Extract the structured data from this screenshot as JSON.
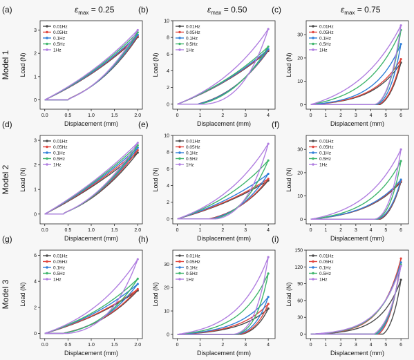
{
  "figure": {
    "column_titles": [
      {
        "symbol": "ε",
        "subscript": "max",
        "value": " = 0.25"
      },
      {
        "symbol": "ε",
        "subscript": "max",
        "value": " = 0.50"
      },
      {
        "symbol": "ε",
        "subscript": "max",
        "value": " = 0.75"
      }
    ],
    "row_labels": [
      "Model 1",
      "Model 2",
      "Model 3"
    ]
  },
  "colors": {
    "0.01Hz": "#4a4a4a",
    "0.05Hz": "#e0453d",
    "0.1Hz": "#2f7ed8",
    "0.5Hz": "#3fb56c",
    "1Hz": "#b07ee0"
  },
  "chart_data": [
    {
      "panel": "(a)",
      "type": "line",
      "xlabel": "Displacement (mm)",
      "ylabel": "Load (N)",
      "xlim": [
        -0.1,
        2.1
      ],
      "ylim": [
        -0.4,
        3.4
      ],
      "xticks": [
        "0.0",
        "0.5",
        "1.0",
        "1.5",
        "2.0"
      ],
      "xtick_values": [
        0,
        0.5,
        1,
        1.5,
        2
      ],
      "yticks": [
        "0",
        "1",
        "2",
        "3"
      ],
      "ytick_values": [
        0,
        1,
        2,
        3
      ],
      "x_max": 2,
      "legend": "top-left",
      "series": [
        {
          "name": "0.01Hz",
          "peak": 2.7,
          "unload_end": 0.5,
          "curv": 0.7,
          "hyst": 0.1
        },
        {
          "name": "0.05Hz",
          "peak": 2.75,
          "unload_end": 0.5,
          "curv": 0.7,
          "hyst": 0.1
        },
        {
          "name": "0.1Hz",
          "peak": 2.8,
          "unload_end": 0.5,
          "curv": 0.7,
          "hyst": 0.11
        },
        {
          "name": "0.5Hz",
          "peak": 2.9,
          "unload_end": 0.5,
          "curv": 0.7,
          "hyst": 0.12
        },
        {
          "name": "1Hz",
          "peak": 3.0,
          "unload_end": 0.5,
          "curv": 0.7,
          "hyst": 0.13
        }
      ]
    },
    {
      "panel": "(b)",
      "type": "line",
      "xlabel": "Displacement (mm)",
      "ylabel": "Load (N)",
      "xlim": [
        -0.2,
        4.3
      ],
      "ylim": [
        -0.6,
        10
      ],
      "xticks": [
        "0",
        "1",
        "2",
        "3",
        "4"
      ],
      "xtick_values": [
        0,
        1,
        2,
        3,
        4
      ],
      "yticks": [
        "0",
        "2",
        "4",
        "6",
        "8",
        "10"
      ],
      "ytick_values": [
        0,
        2,
        4,
        6,
        8,
        10
      ],
      "x_max": 4,
      "legend": "top-left",
      "series": [
        {
          "name": "0.01Hz",
          "peak": 6.4,
          "unload_end": 0.9,
          "curv": 0.8,
          "hyst": 0.15
        },
        {
          "name": "0.05Hz",
          "peak": 6.5,
          "unload_end": 0.9,
          "curv": 0.8,
          "hyst": 0.17
        },
        {
          "name": "0.1Hz",
          "peak": 6.6,
          "unload_end": 0.9,
          "curv": 0.8,
          "hyst": 0.18
        },
        {
          "name": "0.5Hz",
          "peak": 6.9,
          "unload_end": 1.0,
          "curv": 0.85,
          "hyst": 0.2
        },
        {
          "name": "1Hz",
          "peak": 9.0,
          "unload_end": 1.2,
          "curv": 1.3,
          "hyst": 0.4
        }
      ]
    },
    {
      "panel": "(c)",
      "type": "line",
      "xlabel": "Displacement (mm)",
      "ylabel": "Load (N)",
      "xlim": [
        -0.3,
        6.5
      ],
      "ylim": [
        -2,
        36
      ],
      "xticks": [
        "0",
        "1",
        "2",
        "3",
        "4",
        "5",
        "6"
      ],
      "xtick_values": [
        0,
        1,
        2,
        3,
        4,
        5,
        6
      ],
      "yticks": [
        "0",
        "10",
        "20",
        "30"
      ],
      "ytick_values": [
        0,
        10,
        20,
        30
      ],
      "x_max": 6,
      "legend": "top-left",
      "series": [
        {
          "name": "0.01Hz",
          "peak": 18,
          "unload_end": 4.6,
          "curv": 3.2,
          "hyst": 0.35
        },
        {
          "name": "0.05Hz",
          "peak": 19.5,
          "unload_end": 4.5,
          "curv": 3.2,
          "hyst": 0.38
        },
        {
          "name": "0.1Hz",
          "peak": 26,
          "unload_end": 4.4,
          "curv": 3.4,
          "hyst": 0.4
        },
        {
          "name": "0.5Hz",
          "peak": 32,
          "unload_end": 4.3,
          "curv": 2.6,
          "hyst": 0.45
        },
        {
          "name": "1Hz",
          "peak": 34,
          "unload_end": 4.2,
          "curv": 1.9,
          "hyst": 0.55
        }
      ]
    },
    {
      "panel": "(d)",
      "type": "line",
      "xlabel": "Displacement (mm)",
      "ylabel": "Load (N)",
      "xlim": [
        -0.1,
        2.1
      ],
      "ylim": [
        -0.4,
        3.2
      ],
      "xticks": [
        "0.0",
        "0.5",
        "1.0",
        "1.5",
        "2.0"
      ],
      "xtick_values": [
        0,
        0.5,
        1,
        1.5,
        2
      ],
      "yticks": [
        "0",
        "1",
        "2",
        "3"
      ],
      "ytick_values": [
        0,
        1,
        2,
        3
      ],
      "x_max": 2,
      "legend": "top-left",
      "series": [
        {
          "name": "0.01Hz",
          "peak": 2.5,
          "unload_end": 0.4,
          "curv": 0.5,
          "hyst": 0.08
        },
        {
          "name": "0.05Hz",
          "peak": 2.6,
          "unload_end": 0.4,
          "curv": 0.5,
          "hyst": 0.08
        },
        {
          "name": "0.1Hz",
          "peak": 2.7,
          "unload_end": 0.4,
          "curv": 0.5,
          "hyst": 0.09
        },
        {
          "name": "0.5Hz",
          "peak": 2.8,
          "unload_end": 0.4,
          "curv": 0.5,
          "hyst": 0.1
        },
        {
          "name": "1Hz",
          "peak": 2.9,
          "unload_end": 0.4,
          "curv": 0.5,
          "hyst": 0.1
        }
      ]
    },
    {
      "panel": "(e)",
      "type": "line",
      "xlabel": "Displacement (mm)",
      "ylabel": "Load (N)",
      "xlim": [
        -0.2,
        4.3
      ],
      "ylim": [
        -0.6,
        10
      ],
      "xticks": [
        "0",
        "1",
        "2",
        "3",
        "4"
      ],
      "xtick_values": [
        0,
        1,
        2,
        3,
        4
      ],
      "yticks": [
        "0",
        "2",
        "4",
        "6",
        "8",
        "10"
      ],
      "ytick_values": [
        0,
        2,
        4,
        6,
        8,
        10
      ],
      "x_max": 4,
      "legend": "top-left",
      "series": [
        {
          "name": "0.01Hz",
          "peak": 4.6,
          "unload_end": 1.4,
          "curv": 0.8,
          "hyst": 0.22
        },
        {
          "name": "0.05Hz",
          "peak": 4.8,
          "unload_end": 1.4,
          "curv": 0.8,
          "hyst": 0.24
        },
        {
          "name": "0.1Hz",
          "peak": 5.4,
          "unload_end": 1.5,
          "curv": 0.9,
          "hyst": 0.26
        },
        {
          "name": "0.5Hz",
          "peak": 7.0,
          "unload_end": 1.6,
          "curv": 1.2,
          "hyst": 0.32
        },
        {
          "name": "1Hz",
          "peak": 9.0,
          "unload_end": 1.7,
          "curv": 1.5,
          "hyst": 0.4
        }
      ]
    },
    {
      "panel": "(f)",
      "type": "line",
      "xlabel": "Displacement (mm)",
      "ylabel": "Load (N)",
      "xlim": [
        -0.3,
        6.5
      ],
      "ylim": [
        -2,
        36
      ],
      "xticks": [
        "0",
        "1",
        "2",
        "3",
        "4",
        "5",
        "6"
      ],
      "xtick_values": [
        0,
        1,
        2,
        3,
        4,
        5,
        6
      ],
      "yticks": [
        "0",
        "10",
        "20",
        "30"
      ],
      "ytick_values": [
        0,
        10,
        20,
        30
      ],
      "x_max": 6,
      "legend": "top-left",
      "series": [
        {
          "name": "0.01Hz",
          "peak": 16,
          "unload_end": 4.6,
          "curv": 2.5,
          "hyst": 0.4
        },
        {
          "name": "0.05Hz",
          "peak": 16.5,
          "unload_end": 4.5,
          "curv": 2.5,
          "hyst": 0.42
        },
        {
          "name": "0.1Hz",
          "peak": 17,
          "unload_end": 4.4,
          "curv": 2.5,
          "hyst": 0.45
        },
        {
          "name": "0.5Hz",
          "peak": 25,
          "unload_end": 4.3,
          "curv": 2.8,
          "hyst": 0.5
        },
        {
          "name": "1Hz",
          "peak": 30,
          "unload_end": 4.2,
          "curv": 2.4,
          "hyst": 0.55
        }
      ]
    },
    {
      "panel": "(g)",
      "type": "line",
      "xlabel": "Displacement (mm)",
      "ylabel": "Load (N)",
      "xlim": [
        -0.1,
        2.1
      ],
      "ylim": [
        -0.4,
        6.4
      ],
      "xticks": [
        "0.0",
        "0.5",
        "1.0",
        "1.5",
        "2.0"
      ],
      "xtick_values": [
        0,
        0.5,
        1,
        1.5,
        2
      ],
      "yticks": [
        "0",
        "2",
        "4",
        "6"
      ],
      "ytick_values": [
        0,
        2,
        4,
        6
      ],
      "x_max": 2,
      "legend": "top-left",
      "series": [
        {
          "name": "0.01Hz",
          "peak": 3.3,
          "unload_end": 0.4,
          "curv": 0.9,
          "hyst": 0.12
        },
        {
          "name": "0.05Hz",
          "peak": 3.4,
          "unload_end": 0.4,
          "curv": 0.9,
          "hyst": 0.12
        },
        {
          "name": "0.1Hz",
          "peak": 3.8,
          "unload_end": 0.4,
          "curv": 1.0,
          "hyst": 0.15
        },
        {
          "name": "0.5Hz",
          "peak": 4.2,
          "unload_end": 0.4,
          "curv": 1.1,
          "hyst": 0.18
        },
        {
          "name": "1Hz",
          "peak": 5.7,
          "unload_end": 0.5,
          "curv": 1.5,
          "hyst": 0.3
        }
      ]
    },
    {
      "panel": "(h)",
      "type": "line",
      "xlabel": "Displacement (mm)",
      "ylabel": "Load (N)",
      "xlim": [
        -0.2,
        4.3
      ],
      "ylim": [
        -1.8,
        36
      ],
      "xticks": [
        "0",
        "1",
        "2",
        "3",
        "4"
      ],
      "xtick_values": [
        0,
        1,
        2,
        3,
        4
      ],
      "yticks": [
        "0",
        "10",
        "20",
        "30"
      ],
      "ytick_values": [
        0,
        10,
        20,
        30
      ],
      "x_max": 4,
      "legend": "top-left",
      "series": [
        {
          "name": "0.01Hz",
          "peak": 11,
          "unload_end": 2.8,
          "curv": 3.0,
          "hyst": 0.35
        },
        {
          "name": "0.05Hz",
          "peak": 13,
          "unload_end": 2.7,
          "curv": 3.0,
          "hyst": 0.38
        },
        {
          "name": "0.1Hz",
          "peak": 16,
          "unload_end": 2.6,
          "curv": 3.0,
          "hyst": 0.4
        },
        {
          "name": "0.5Hz",
          "peak": 26,
          "unload_end": 2.5,
          "curv": 3.2,
          "hyst": 0.48
        },
        {
          "name": "1Hz",
          "peak": 33,
          "unload_end": 2.4,
          "curv": 2.9,
          "hyst": 0.55
        }
      ]
    },
    {
      "panel": "(i)",
      "type": "line",
      "xlabel": "Displacement (mm)",
      "ylabel": "Load (N)",
      "xlim": [
        -0.3,
        6.5
      ],
      "ylim": [
        -8,
        150
      ],
      "xticks": [
        "0",
        "1",
        "2",
        "3",
        "4",
        "5",
        "6"
      ],
      "xtick_values": [
        0,
        1,
        2,
        3,
        4,
        5,
        6
      ],
      "yticks": [
        "0",
        "30",
        "60",
        "90",
        "120",
        "150"
      ],
      "ytick_values": [
        0,
        30,
        60,
        90,
        120,
        150
      ],
      "x_max": 6,
      "legend": "top-left",
      "series": [
        {
          "name": "0.01Hz",
          "peak": 97,
          "unload_end": 4.8,
          "curv": 4.5,
          "hyst": 0.35
        },
        {
          "name": "0.05Hz",
          "peak": 135,
          "unload_end": 4.5,
          "curv": 4.6,
          "hyst": 0.32
        },
        {
          "name": "0.1Hz",
          "peak": 128,
          "unload_end": 4.4,
          "curv": 4.3,
          "hyst": 0.3
        },
        {
          "name": "0.5Hz",
          "peak": 124,
          "unload_end": 4.3,
          "curv": 4.2,
          "hyst": 0.28
        },
        {
          "name": "1Hz",
          "peak": 122,
          "unload_end": 4.2,
          "curv": 4.0,
          "hyst": 0.28
        }
      ]
    }
  ]
}
